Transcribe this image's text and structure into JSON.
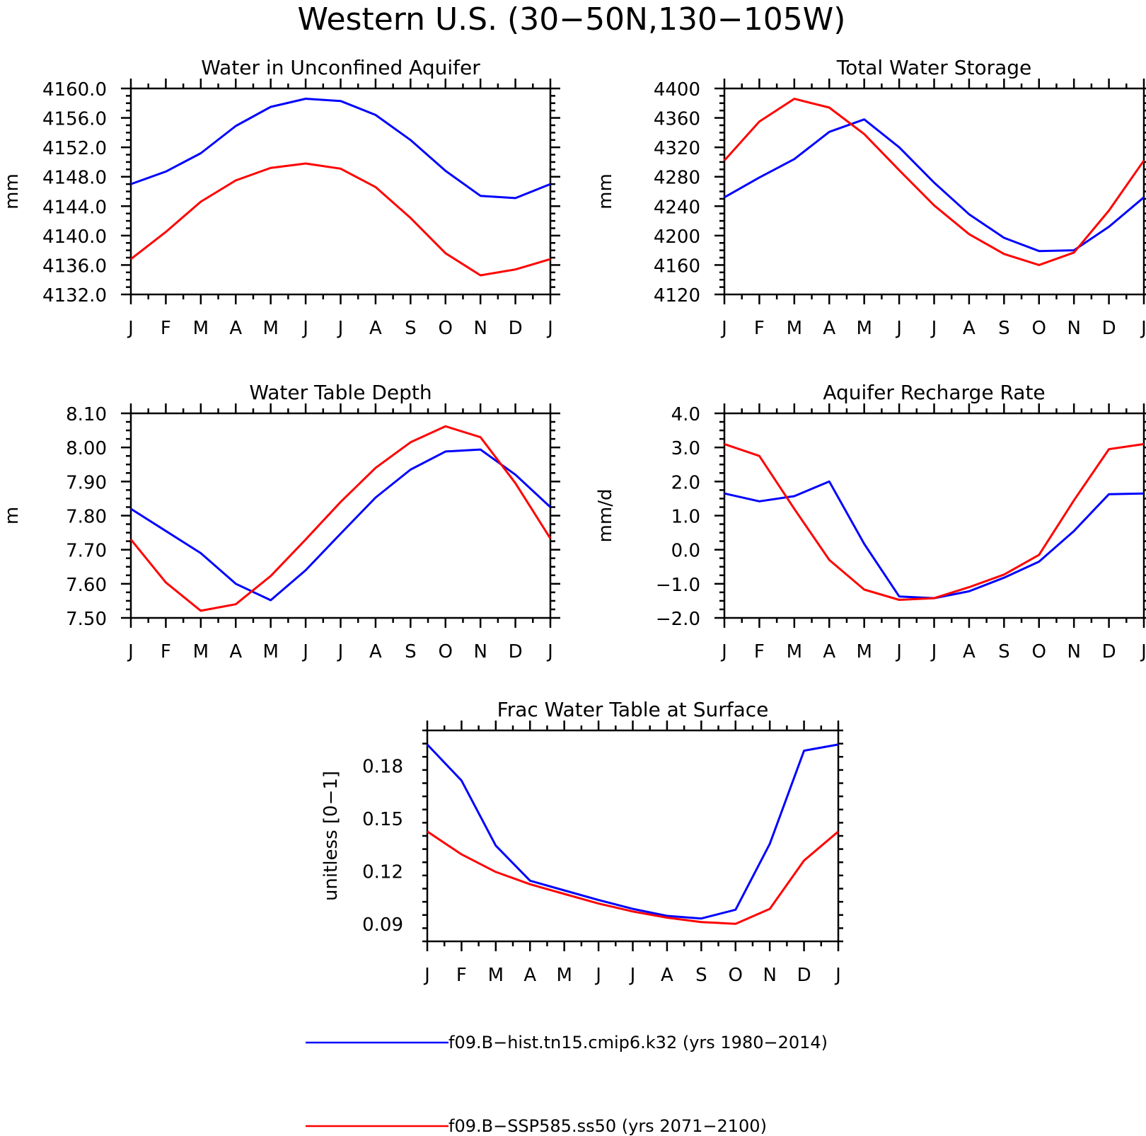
{
  "figure": {
    "title": "Western U.S. (30−50N,130−105W)"
  },
  "months": [
    "J",
    "F",
    "M",
    "A",
    "M",
    "J",
    "J",
    "A",
    "S",
    "O",
    "N",
    "D",
    "J"
  ],
  "colors": {
    "series_1": "#0000ff",
    "series_2": "#ff0000"
  },
  "legend": {
    "placement": "bottom",
    "entries": [
      {
        "label": "f09.B−hist.tn15.cmip6.k32 (yrs 1980−2014)",
        "color": "#0000ff"
      },
      {
        "label": "f09.B−SSP585.ss50 (yrs 2071−2100)",
        "color": "#ff0000"
      }
    ]
  },
  "chart_data": [
    {
      "type": "line",
      "title": "Water in Unconfined Aquifer",
      "ylabel": "mm",
      "xlabel": "",
      "categories": [
        "J",
        "F",
        "M",
        "A",
        "M",
        "J",
        "J",
        "A",
        "S",
        "O",
        "N",
        "D",
        "J"
      ],
      "ylim": [
        4132,
        4160
      ],
      "yticks": [
        4132,
        4136,
        4140,
        4144,
        4148,
        4152,
        4156,
        4160
      ],
      "ytick_labels": [
        "4132.0",
        "4136.0",
        "4140.0",
        "4144.0",
        "4148.0",
        "4152.0",
        "4156.0",
        "4160.0"
      ],
      "series": [
        {
          "values": [
            4147.0,
            4148.7,
            4151.2,
            4154.9,
            4157.5,
            4158.6,
            4158.3,
            4156.4,
            4153.0,
            4148.8,
            4145.4,
            4145.1,
            4147.0
          ]
        },
        {
          "values": [
            4136.8,
            4140.5,
            4144.6,
            4147.5,
            4149.2,
            4149.8,
            4149.1,
            4146.6,
            4142.4,
            4137.6,
            4134.6,
            4135.4,
            4136.8
          ]
        }
      ]
    },
    {
      "type": "line",
      "title": "Total Water Storage",
      "ylabel": "mm",
      "xlabel": "",
      "categories": [
        "J",
        "F",
        "M",
        "A",
        "M",
        "J",
        "J",
        "A",
        "S",
        "O",
        "N",
        "D",
        "J"
      ],
      "ylim": [
        4120,
        4400
      ],
      "yticks": [
        4120,
        4160,
        4200,
        4240,
        4280,
        4320,
        4360,
        4400
      ],
      "ytick_labels": [
        "4120",
        "4160",
        "4200",
        "4240",
        "4280",
        "4320",
        "4360",
        "4400"
      ],
      "series": [
        {
          "values": [
            4252,
            4279,
            4304,
            4341,
            4358,
            4320,
            4272,
            4229,
            4197,
            4179,
            4180,
            4212,
            4252
          ]
        },
        {
          "values": [
            4302,
            4355,
            4386,
            4374,
            4338,
            4289,
            4241,
            4202,
            4175,
            4160,
            4177,
            4234,
            4302
          ]
        }
      ]
    },
    {
      "type": "line",
      "title": "Water Table Depth",
      "ylabel": "m",
      "xlabel": "",
      "categories": [
        "J",
        "F",
        "M",
        "A",
        "M",
        "J",
        "J",
        "A",
        "S",
        "O",
        "N",
        "D",
        "J"
      ],
      "ylim": [
        7.5,
        8.1
      ],
      "yticks": [
        7.5,
        7.6,
        7.7,
        7.8,
        7.9,
        8.0,
        8.1
      ],
      "ytick_labels": [
        "7.50",
        "7.60",
        "7.70",
        "7.80",
        "7.90",
        "8.00",
        "8.10"
      ],
      "series": [
        {
          "values": [
            7.82,
            7.755,
            7.69,
            7.6,
            7.552,
            7.64,
            7.747,
            7.853,
            7.935,
            7.988,
            7.994,
            7.92,
            7.825
          ]
        },
        {
          "values": [
            7.73,
            7.604,
            7.521,
            7.54,
            7.623,
            7.73,
            7.84,
            7.94,
            8.015,
            8.062,
            8.03,
            7.895,
            7.733
          ]
        }
      ]
    },
    {
      "type": "line",
      "title": "Aquifer Recharge Rate",
      "ylabel": "mm/d",
      "xlabel": "",
      "categories": [
        "J",
        "F",
        "M",
        "A",
        "M",
        "J",
        "J",
        "A",
        "S",
        "O",
        "N",
        "D",
        "J"
      ],
      "ylim": [
        -2.0,
        4.0
      ],
      "yticks": [
        -2.0,
        -1.0,
        0.0,
        1.0,
        2.0,
        3.0,
        4.0
      ],
      "ytick_labels": [
        "−2.0",
        "−1.0",
        "0.0",
        "1.0",
        "2.0",
        "3.0",
        "4.0"
      ],
      "series": [
        {
          "values": [
            1.65,
            1.42,
            1.57,
            2.0,
            0.17,
            -1.37,
            -1.42,
            -1.22,
            -0.82,
            -0.35,
            0.55,
            1.63,
            1.65
          ]
        },
        {
          "values": [
            3.1,
            2.75,
            1.2,
            -0.3,
            -1.17,
            -1.47,
            -1.42,
            -1.1,
            -0.73,
            -0.15,
            1.45,
            2.95,
            3.1
          ]
        }
      ]
    },
    {
      "type": "line",
      "title": "Frac Water Table at Surface",
      "ylabel": "unitless [0−1]",
      "xlabel": "",
      "categories": [
        "J",
        "F",
        "M",
        "A",
        "M",
        "J",
        "J",
        "A",
        "S",
        "O",
        "N",
        "D",
        "J"
      ],
      "ylim": [
        0.08,
        0.2
      ],
      "yticks": [
        0.09,
        0.12,
        0.15,
        0.18
      ],
      "ytick_labels": [
        "0.09",
        "0.12",
        "0.15",
        "0.18"
      ],
      "series": [
        {
          "values": [
            0.192,
            0.1715,
            0.1345,
            0.1145,
            0.109,
            0.1035,
            0.0985,
            0.0945,
            0.093,
            0.098,
            0.1355,
            0.1885,
            0.192
          ]
        },
        {
          "values": [
            0.1425,
            0.1295,
            0.1195,
            0.1125,
            0.107,
            0.1015,
            0.097,
            0.0935,
            0.091,
            0.09,
            0.0985,
            0.126,
            0.1425
          ]
        }
      ]
    }
  ]
}
